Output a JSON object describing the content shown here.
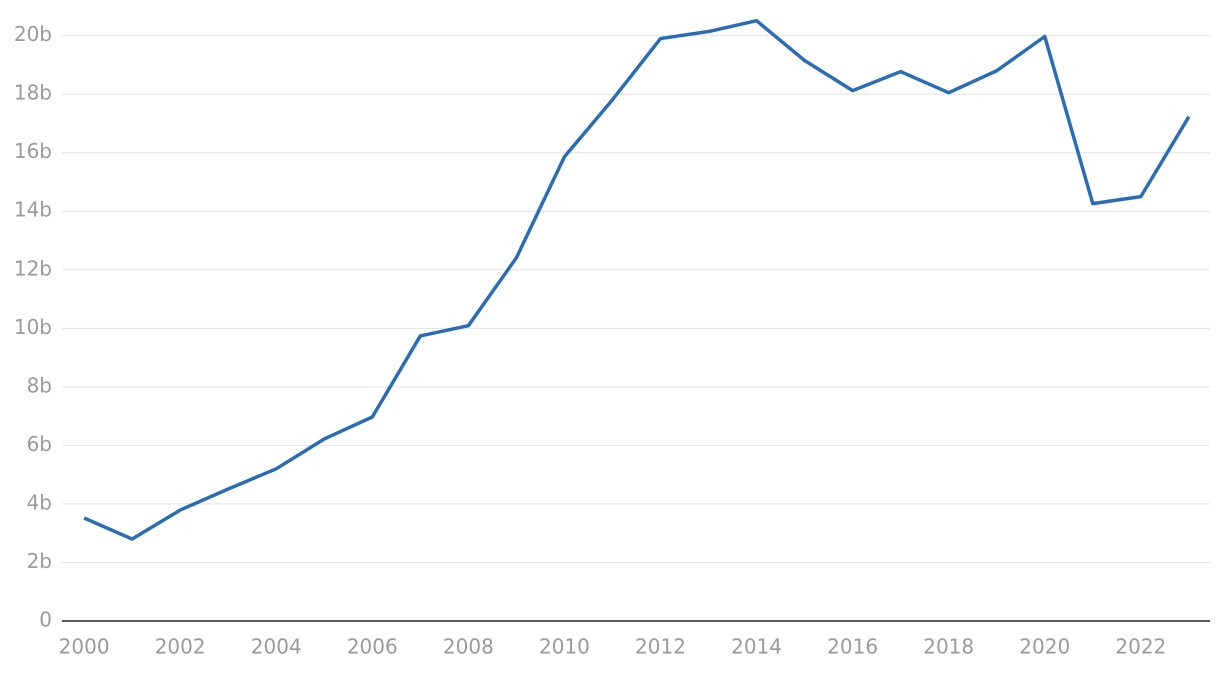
{
  "chart_data": {
    "type": "line",
    "x": [
      2000,
      2001,
      2002,
      2003,
      2004,
      2005,
      2006,
      2007,
      2008,
      2009,
      2010,
      2011,
      2012,
      2013,
      2014,
      2015,
      2016,
      2017,
      2018,
      2019,
      2020,
      2021,
      2022,
      2023
    ],
    "series": [
      {
        "color": "#2a6db5",
        "values": [
          3.52,
          2.8,
          3.79,
          4.51,
          5.2,
          6.22,
          6.97,
          9.74,
          10.09,
          12.41,
          15.86,
          17.81,
          19.9,
          20.14,
          20.51,
          19.15,
          18.12,
          18.77,
          18.05,
          18.8,
          19.97,
          14.26,
          14.5,
          17.23
        ]
      }
    ],
    "xlim": [
      1999.54,
      2023.44
    ],
    "xticks": [
      2000,
      2002,
      2004,
      2006,
      2008,
      2010,
      2012,
      2014,
      2016,
      2018,
      2020,
      2022
    ],
    "ylim": [
      0,
      20.5
    ],
    "yticks": [
      0,
      {
        "value": 2,
        "label": "2b"
      },
      {
        "value": 4,
        "label": "4b"
      },
      {
        "value": 6,
        "label": "6b"
      },
      {
        "value": 8,
        "label": "8b"
      },
      {
        "value": 10,
        "label": "10b"
      },
      {
        "value": 12,
        "label": "12b"
      },
      {
        "value": 14,
        "label": "14b"
      },
      {
        "value": 16,
        "label": "16b"
      },
      {
        "value": 18,
        "label": "18b"
      },
      {
        "value": 20,
        "label": "20b"
      }
    ],
    "grid": true
  }
}
